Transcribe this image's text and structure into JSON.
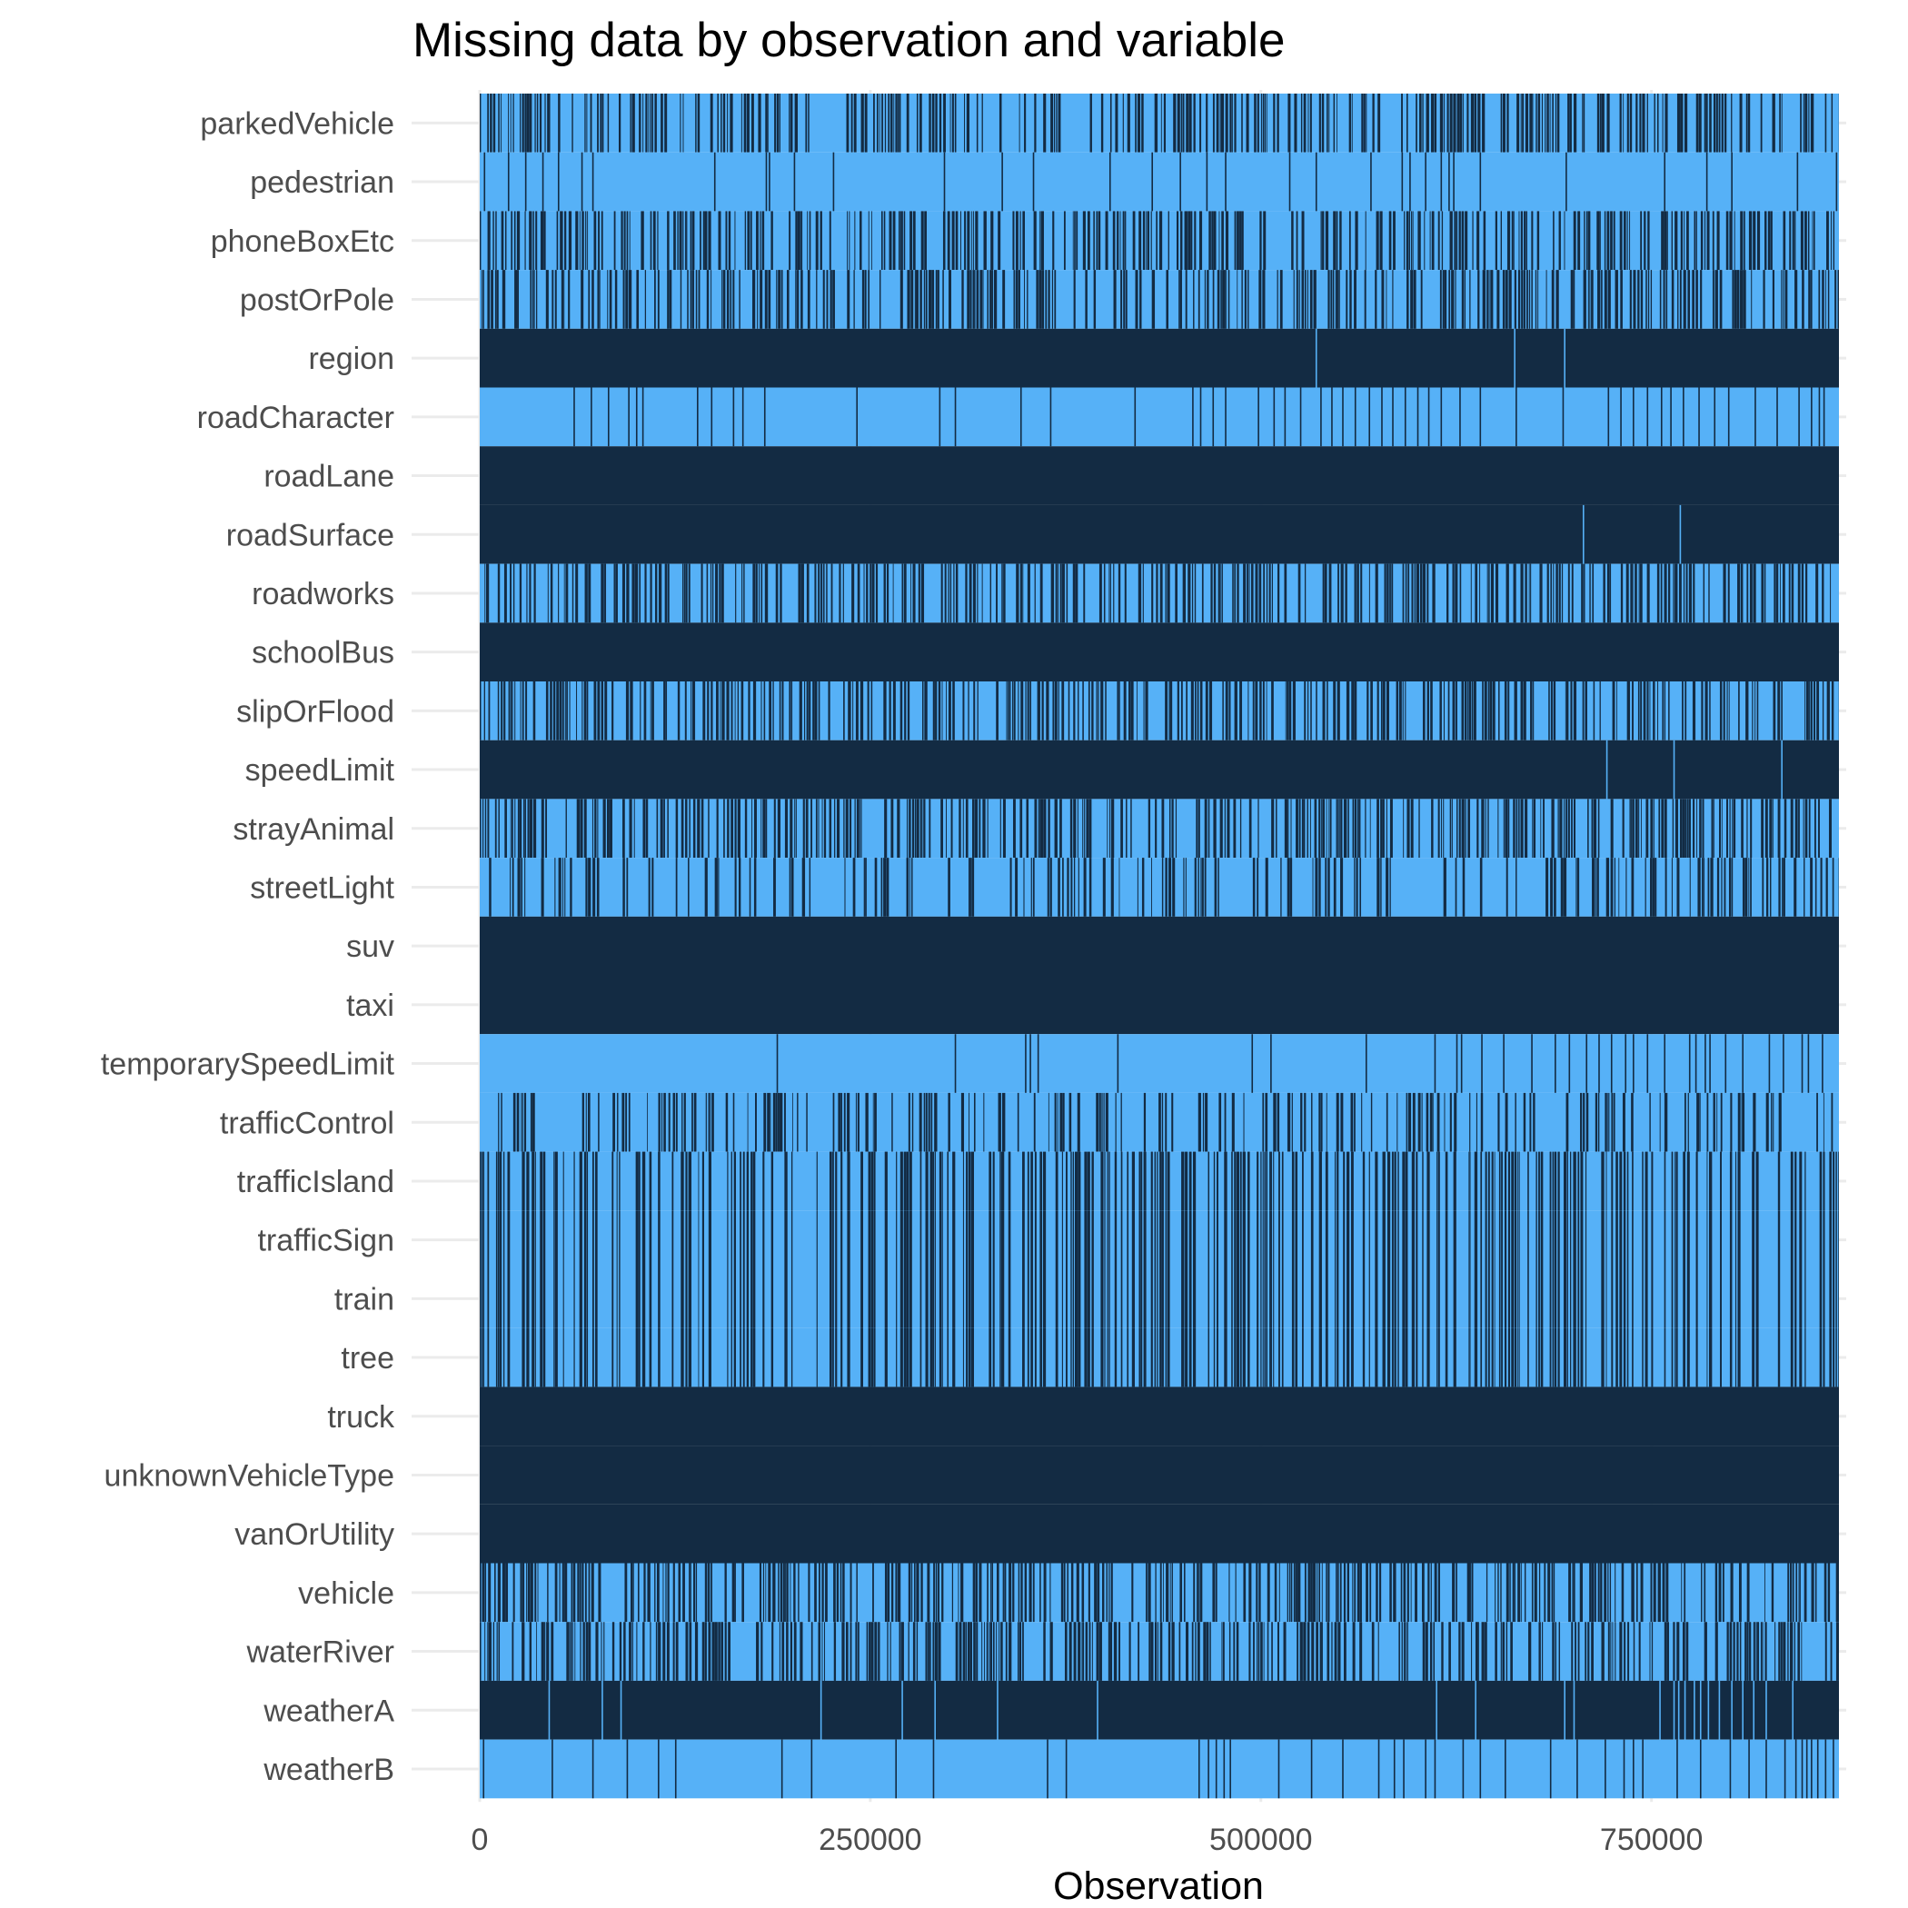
{
  "chart_data": {
    "type": "heatmap",
    "title": "Missing data by observation and variable",
    "xlabel": "Observation",
    "ylabel": "",
    "xlim": [
      0,
      870000
    ],
    "x_ticks": [
      0,
      250000,
      500000,
      750000
    ],
    "x_tick_labels": [
      "0",
      "250000",
      "500000",
      "750000"
    ],
    "grid": true,
    "legend": "none",
    "colors": {
      "missing": "#56b1f7",
      "present": "#132b43"
    },
    "variables": [
      {
        "name": "parkedVehicle",
        "pattern": "dense",
        "seed": 11,
        "density": 0.55
      },
      {
        "name": "pedestrian",
        "pattern": "sparse",
        "base": "missing",
        "lines": [
          2600,
          18000,
          29000,
          40000,
          50000,
          65000,
          72000,
          150000,
          183000,
          185000,
          201000,
          226000,
          297000,
          334000,
          354000,
          403000,
          430000,
          448000,
          465000,
          477000,
          518000,
          535000,
          570000,
          590000,
          595000,
          605000,
          615000,
          620000,
          623000,
          640000,
          695000,
          758000,
          785000,
          801000,
          843000,
          868000
        ]
      },
      {
        "name": "phoneBoxEtc",
        "pattern": "dense",
        "seed": 23,
        "density": 0.55
      },
      {
        "name": "postOrPole",
        "pattern": "dense",
        "seed": 37,
        "density": 0.55
      },
      {
        "name": "region",
        "pattern": "sparse",
        "base": "present",
        "lines": [
          535000,
          662000,
          694000
        ]
      },
      {
        "name": "roadCharacter",
        "pattern": "sparse",
        "base": "missing",
        "lines": [
          60000,
          71000,
          82000,
          95000,
          100000,
          104000,
          139000,
          148000,
          162000,
          168000,
          182000,
          241000,
          294000,
          304000,
          346000,
          365000,
          419000,
          456000,
          461000,
          469000,
          477000,
          498000,
          508000,
          515000,
          525000,
          538000,
          545000,
          552000,
          560000,
          569000,
          577000,
          584000,
          592000,
          600000,
          607000,
          615000,
          627000,
          640000,
          663000,
          693000,
          722000,
          730000,
          738000,
          747000,
          756000,
          762000,
          770000,
          780000,
          790000,
          799000,
          816000,
          830000,
          844000,
          852000,
          857000,
          860000
        ]
      },
      {
        "name": "roadLane",
        "pattern": "solid",
        "base": "present"
      },
      {
        "name": "roadSurface",
        "pattern": "sparse",
        "base": "present",
        "lines": [
          706000,
          768000
        ]
      },
      {
        "name": "roadworks",
        "pattern": "dense",
        "seed": 41,
        "density": 0.55
      },
      {
        "name": "schoolBus",
        "pattern": "solid",
        "base": "present"
      },
      {
        "name": "slipOrFlood",
        "pattern": "dense",
        "seed": 53,
        "density": 0.55
      },
      {
        "name": "speedLimit",
        "pattern": "sparse",
        "base": "present",
        "lines": [
          721000,
          764000,
          833000
        ]
      },
      {
        "name": "strayAnimal",
        "pattern": "dense",
        "seed": 67,
        "density": 0.55
      },
      {
        "name": "streetLight",
        "pattern": "dense",
        "seed": 71,
        "density": 0.35
      },
      {
        "name": "suv",
        "pattern": "solid",
        "base": "present"
      },
      {
        "name": "taxi",
        "pattern": "solid",
        "base": "present"
      },
      {
        "name": "temporarySpeedLimit",
        "pattern": "sparse",
        "base": "missing",
        "lines": [
          190000,
          304000,
          349000,
          352000,
          357000,
          408000,
          494000,
          506000,
          567000,
          611000,
          625000,
          628000,
          641000,
          655000,
          673000,
          688000,
          697000,
          708000,
          716000,
          724000,
          733000,
          738000,
          747000,
          758000,
          774000,
          778000,
          784000,
          787000,
          797000,
          808000,
          825000,
          834000,
          846000,
          850000,
          859000
        ]
      },
      {
        "name": "trafficControl",
        "pattern": "dense",
        "seed": 83,
        "density": 0.4
      },
      {
        "name": "trafficIsland",
        "pattern": "dense",
        "seed": 97,
        "density": 0.55
      },
      {
        "name": "trafficSign",
        "pattern": "dense",
        "seed": 97,
        "density": 0.55
      },
      {
        "name": "train",
        "pattern": "dense",
        "seed": 97,
        "density": 0.55
      },
      {
        "name": "tree",
        "pattern": "dense",
        "seed": 97,
        "density": 0.55
      },
      {
        "name": "truck",
        "pattern": "solid",
        "base": "present"
      },
      {
        "name": "unknownVehicleType",
        "pattern": "solid",
        "base": "present"
      },
      {
        "name": "vanOrUtility",
        "pattern": "solid",
        "base": "present"
      },
      {
        "name": "vehicle",
        "pattern": "dense",
        "seed": 109,
        "density": 0.55
      },
      {
        "name": "waterRiver",
        "pattern": "dense",
        "seed": 113,
        "density": 0.55
      },
      {
        "name": "weatherA",
        "pattern": "sparse",
        "base": "present",
        "lines": [
          44000,
          78000,
          90000,
          218000,
          270000,
          291000,
          331000,
          395000,
          612000,
          637000,
          694000,
          700000,
          755000,
          764000,
          767000,
          771000,
          777000,
          781000,
          786000,
          793000,
          801000,
          808000,
          815000,
          823000,
          840000
        ]
      },
      {
        "name": "weatherB",
        "pattern": "sparse",
        "base": "missing",
        "lines": [
          2000,
          46000,
          72000,
          94000,
          114000,
          125000,
          193000,
          212000,
          266000,
          290000,
          363000,
          375000,
          460000,
          466000,
          471000,
          476000,
          480000,
          511000,
          532000,
          552000,
          575000,
          585000,
          591000,
          605000,
          611000,
          629000,
          640000,
          656000,
          685000,
          702000,
          720000,
          732000,
          738000,
          744000,
          766000,
          781000,
          800000,
          812000,
          823000,
          835000,
          842000,
          846000,
          849000,
          852000,
          856000,
          861000,
          866000
        ]
      }
    ]
  }
}
